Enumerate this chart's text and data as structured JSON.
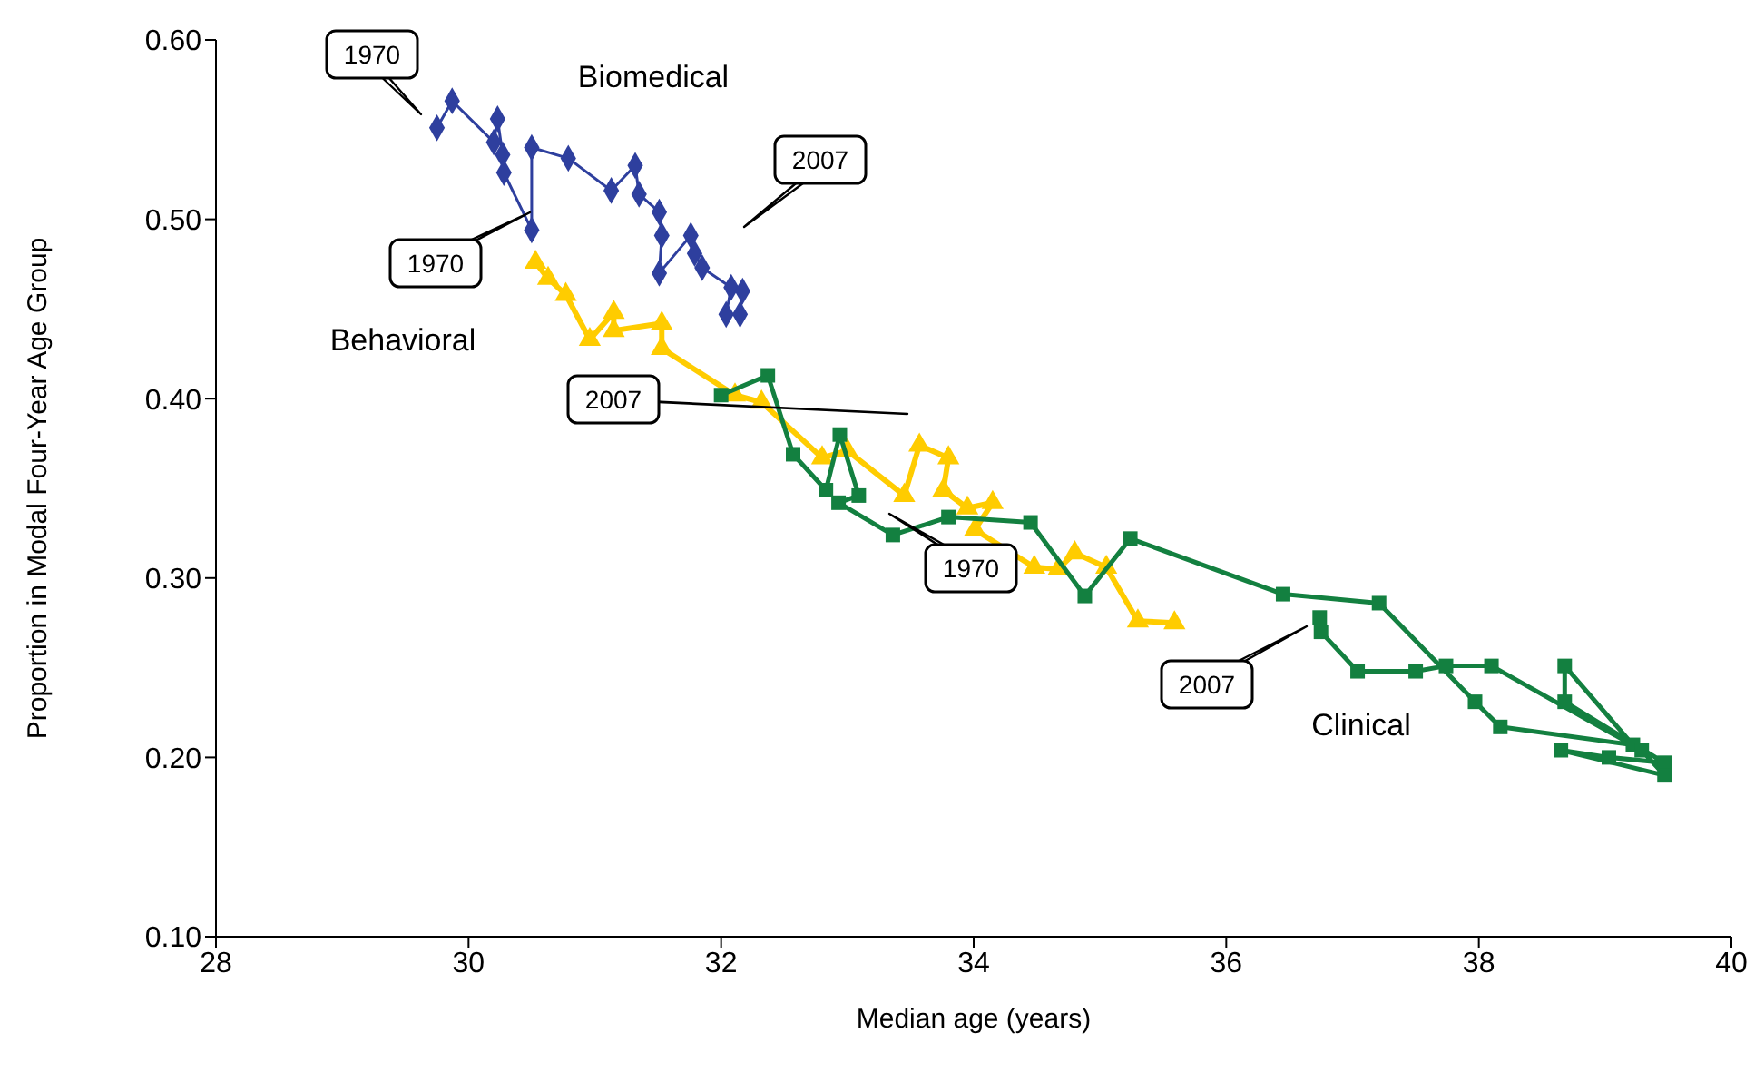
{
  "chart_data": {
    "type": "line",
    "xlabel": "Median age (years)",
    "ylabel": "Proportion in Modal Four-Year Age Group",
    "xlim": [
      28,
      40
    ],
    "xticks": [
      28,
      30,
      32,
      34,
      36,
      38,
      40
    ],
    "ylim": [
      0.1,
      0.6
    ],
    "yticks": [
      {
        "value": 0.1,
        "label": "0.10"
      },
      {
        "value": 0.2,
        "label": "0.20"
      },
      {
        "value": 0.3,
        "label": "0.30"
      },
      {
        "value": 0.4,
        "label": "0.40"
      },
      {
        "value": 0.5,
        "label": "0.50"
      },
      {
        "value": 0.6,
        "label": "0.60"
      }
    ],
    "series": [
      {
        "name": "Biomedical",
        "color": "#2e3f9e",
        "marker": "diamond",
        "x": [
          29.75,
          29.87,
          30.2,
          30.23,
          30.27,
          30.28,
          30.5,
          30.5,
          30.79,
          31.13,
          31.32,
          31.35,
          31.51,
          31.53,
          31.51,
          31.76,
          31.79,
          31.85,
          32.08,
          32.04,
          32.15,
          32.17
        ],
        "values": [
          0.551,
          0.566,
          0.543,
          0.556,
          0.536,
          0.526,
          0.494,
          0.54,
          0.534,
          0.516,
          0.53,
          0.514,
          0.504,
          0.491,
          0.47,
          0.491,
          0.481,
          0.473,
          0.462,
          0.447,
          0.447,
          0.46
        ]
      },
      {
        "name": "Behavioral",
        "color": "#ffcc00",
        "marker": "triangle",
        "x": [
          30.53,
          30.63,
          30.77,
          30.96,
          31.15,
          31.15,
          31.53,
          31.53,
          32.11,
          32.32,
          32.8,
          33.0,
          33.45,
          33.57,
          33.8,
          33.76,
          33.95,
          34.15,
          34.01,
          34.48,
          34.67,
          34.8,
          35.05,
          35.3,
          35.59
        ],
        "values": [
          0.476,
          0.467,
          0.458,
          0.433,
          0.448,
          0.438,
          0.442,
          0.428,
          0.402,
          0.398,
          0.367,
          0.371,
          0.346,
          0.374,
          0.367,
          0.349,
          0.339,
          0.342,
          0.327,
          0.306,
          0.305,
          0.314,
          0.306,
          0.276,
          0.275
        ]
      },
      {
        "name": "Clinical",
        "color": "#138040",
        "marker": "square",
        "x": [
          32.0,
          32.37,
          32.57,
          32.83,
          32.94,
          33.09,
          32.93,
          33.36,
          33.8,
          34.45,
          34.88,
          35.24,
          36.45,
          37.21,
          37.97,
          38.17,
          39.22,
          38.68,
          38.68,
          39.47,
          39.03,
          38.65,
          39.47,
          39.29,
          38.1,
          37.74,
          37.5,
          37.04,
          36.75,
          36.74
        ],
        "values": [
          0.402,
          0.413,
          0.369,
          0.349,
          0.38,
          0.346,
          0.342,
          0.324,
          0.334,
          0.331,
          0.29,
          0.322,
          0.291,
          0.286,
          0.231,
          0.217,
          0.207,
          0.251,
          0.231,
          0.197,
          0.2,
          0.204,
          0.19,
          0.204,
          0.251,
          0.251,
          0.248,
          0.248,
          0.27,
          0.278
        ]
      }
    ],
    "annotations": [
      "1970",
      "2007",
      "1970",
      "2007",
      "1970",
      "2007"
    ]
  }
}
